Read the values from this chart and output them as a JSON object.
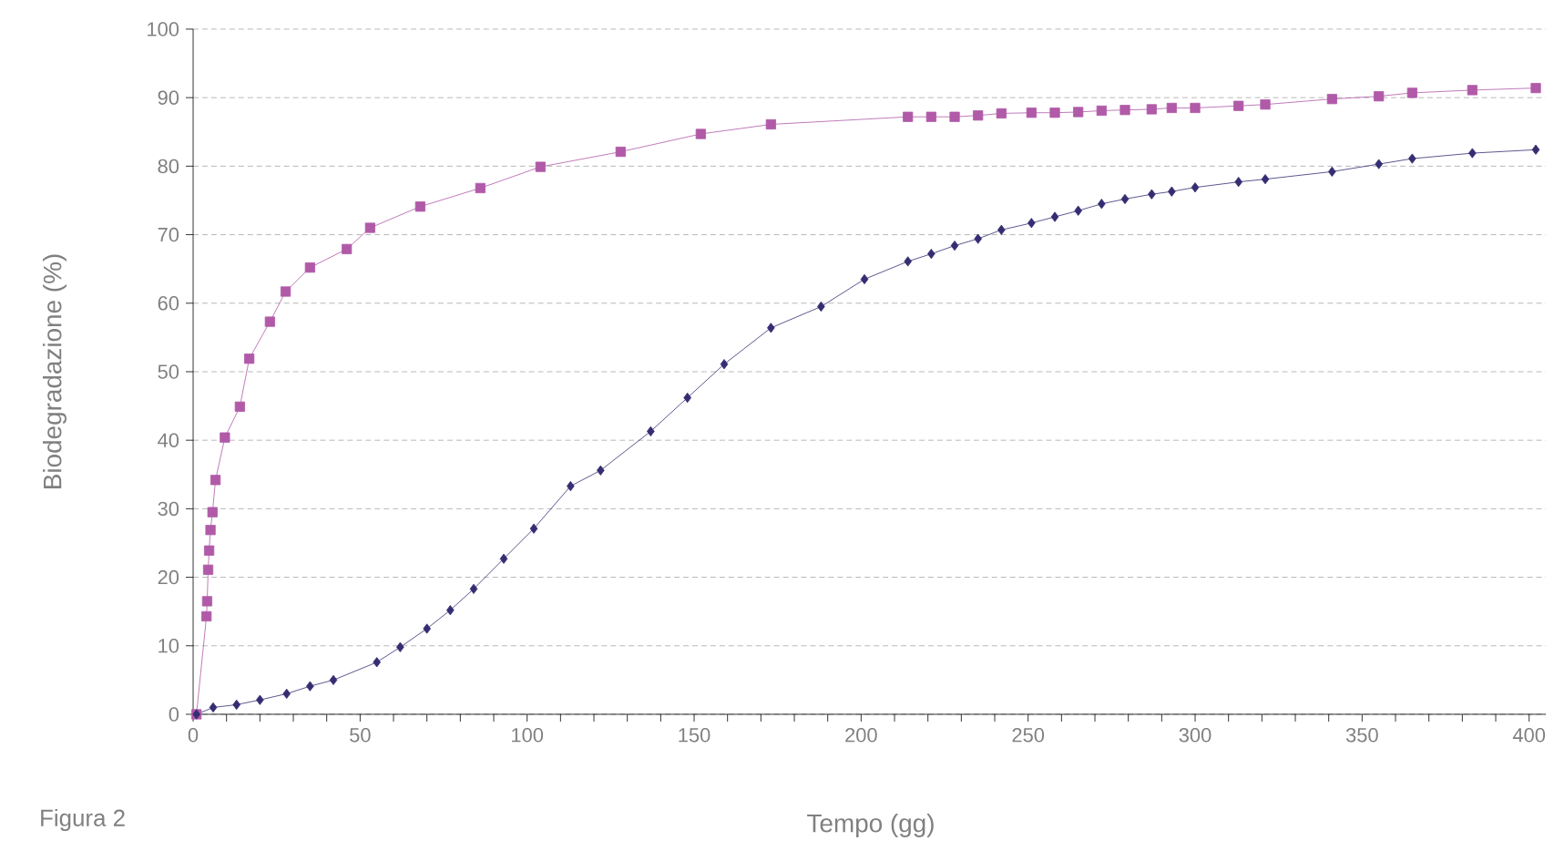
{
  "chart_data": {
    "type": "line",
    "xlabel": "Tempo (gg)",
    "ylabel": "Biodegradazione (%)",
    "annotations": [
      "Figura 2"
    ],
    "xlim": [
      0,
      405
    ],
    "ylim": [
      0,
      100
    ],
    "xticks": [
      0,
      {
        "value": 10,
        "label": null
      },
      {
        "value": 20,
        "label": null
      },
      {
        "value": 30,
        "label": null
      },
      {
        "value": 40,
        "label": null
      },
      50,
      {
        "value": 60,
        "label": null
      },
      {
        "value": 70,
        "label": null
      },
      {
        "value": 80,
        "label": null
      },
      {
        "value": 90,
        "label": null
      },
      100,
      {
        "value": 110,
        "label": null
      },
      {
        "value": 120,
        "label": null
      },
      {
        "value": 130,
        "label": null
      },
      {
        "value": 140,
        "label": null
      },
      150,
      {
        "value": 160,
        "label": null
      },
      {
        "value": 170,
        "label": null
      },
      {
        "value": 180,
        "label": null
      },
      {
        "value": 190,
        "label": null
      },
      200,
      {
        "value": 210,
        "label": null
      },
      {
        "value": 220,
        "label": null
      },
      {
        "value": 230,
        "label": null
      },
      {
        "value": 240,
        "label": null
      },
      250,
      {
        "value": 260,
        "label": null
      },
      {
        "value": 270,
        "label": null
      },
      {
        "value": 280,
        "label": null
      },
      {
        "value": 290,
        "label": null
      },
      300,
      {
        "value": 310,
        "label": null
      },
      {
        "value": 320,
        "label": null
      },
      {
        "value": 330,
        "label": null
      },
      {
        "value": 340,
        "label": null
      },
      350,
      {
        "value": 360,
        "label": null
      },
      {
        "value": 370,
        "label": null
      },
      {
        "value": 380,
        "label": null
      },
      {
        "value": 390,
        "label": null
      },
      400
    ],
    "yticks": [
      0,
      10,
      20,
      30,
      40,
      50,
      60,
      70,
      80,
      90,
      100
    ],
    "grid": "y",
    "line_style": "solid",
    "series": [
      {
        "color": "#b05aa8",
        "marker": "square",
        "x": [
          1,
          4,
          4.2,
          4.5,
          4.8,
          5.2,
          5.8,
          6.7,
          9.5,
          14,
          16.8,
          23,
          27.7,
          35,
          46,
          53,
          68,
          86,
          104,
          128,
          152,
          173,
          214,
          221,
          228,
          235,
          242,
          251,
          258,
          265,
          272,
          279,
          287,
          293,
          300,
          313,
          321,
          341,
          355,
          365,
          383,
          402
        ],
        "values": [
          0,
          14.3,
          16.5,
          21.1,
          23.9,
          26.9,
          29.5,
          34.2,
          40.4,
          44.9,
          51.9,
          57.3,
          61.7,
          65.2,
          67.9,
          71,
          74.1,
          76.8,
          79.9,
          82.1,
          84.7,
          86.1,
          87.2,
          87.2,
          87.2,
          87.4,
          87.7,
          87.8,
          87.8,
          87.9,
          88.1,
          88.2,
          88.3,
          88.5,
          88.5,
          88.8,
          89,
          89.8,
          90.2,
          90.7,
          91.1,
          91.4
        ]
      },
      {
        "color": "#352d72",
        "marker": "diamond",
        "x": [
          1,
          6,
          13,
          20,
          28,
          35,
          42,
          55,
          62,
          70,
          77,
          84,
          93,
          102,
          113,
          122,
          137,
          148,
          159,
          173,
          188,
          201,
          214,
          221,
          228,
          235,
          242,
          251,
          258,
          265,
          272,
          279,
          287,
          293,
          300,
          313,
          321,
          341,
          355,
          365,
          383,
          402
        ],
        "values": [
          0,
          1,
          1.4,
          2.1,
          3,
          4.1,
          5,
          7.6,
          9.8,
          12.5,
          15.2,
          18.3,
          22.7,
          27.1,
          33.3,
          35.6,
          41.3,
          46.2,
          51.1,
          56.4,
          59.5,
          63.5,
          66.1,
          67.2,
          68.4,
          69.4,
          70.7,
          71.7,
          72.6,
          73.5,
          74.5,
          75.2,
          75.9,
          76.3,
          76.9,
          77.7,
          78.1,
          79.2,
          80.3,
          81.1,
          81.9,
          82.4
        ]
      }
    ]
  }
}
